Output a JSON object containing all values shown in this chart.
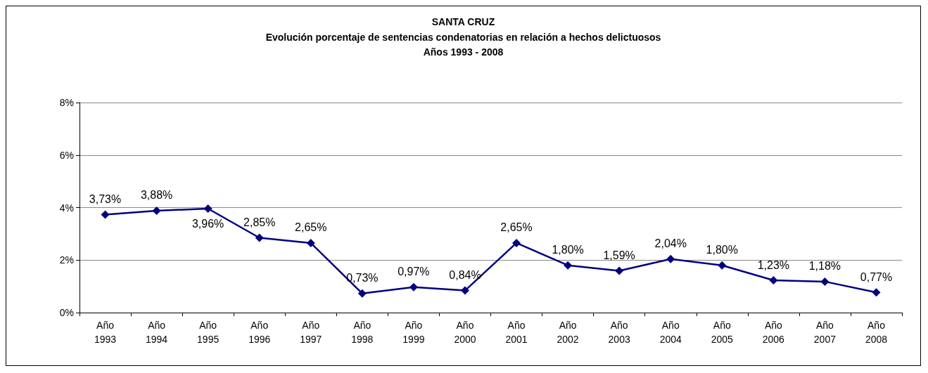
{
  "chart_data": {
    "type": "line",
    "title": "SANTA CRUZ",
    "subtitle": "Evolución porcentaje de sentencias condenatorias en relación a hechos delictuosos\nAños 1993 - 2008",
    "categories": [
      "Año 1993",
      "Año 1994",
      "Año 1995",
      "Año 1996",
      "Año 1997",
      "Año 1998",
      "Año 1999",
      "Año 2000",
      "Año 2001",
      "Año 2002",
      "Año 2003",
      "Año 2004",
      "Año 2005",
      "Año 2006",
      "Año 2007",
      "Año 2008"
    ],
    "series": [
      {
        "color": "#000080",
        "values": [
          3.73,
          3.88,
          3.96,
          2.85,
          2.65,
          0.73,
          0.97,
          0.84,
          2.65,
          1.8,
          1.59,
          2.04,
          1.8,
          1.23,
          1.18,
          0.77
        ],
        "value_labels": [
          "3,73%",
          "3,88%",
          "3,96%",
          "2,85%",
          "2,65%",
          "0,73%",
          "0,97%",
          "0,84%",
          "2,65%",
          "1,80%",
          "1,59%",
          "2,04%",
          "1,80%",
          "1,23%",
          "1,18%",
          "0,77%"
        ]
      }
    ],
    "ylim": [
      0,
      8
    ],
    "yticks": [
      {
        "value": 0,
        "label": "0%"
      },
      {
        "value": 2,
        "label": "2%"
      },
      {
        "value": 4,
        "label": "4%"
      },
      {
        "value": 6,
        "label": "6%"
      },
      {
        "value": 8,
        "label": "8%"
      }
    ],
    "grid": "y",
    "marker": "diamond",
    "line_style": "solid"
  }
}
